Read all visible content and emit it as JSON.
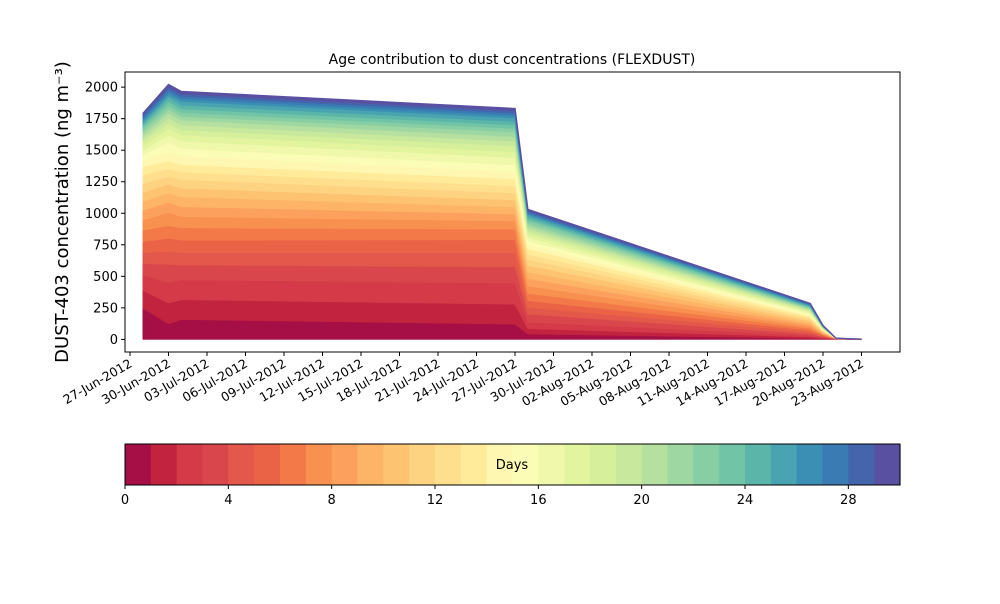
{
  "chart_data": {
    "type": "area",
    "stacked": true,
    "title": "Age contribution to dust concentrations (FLEXDUST)",
    "ylabel": "DUST-403 concentration (ng m⁻³)",
    "xlabel": "",
    "ylim": [
      -100,
      2120
    ],
    "yticks": [
      0,
      250,
      500,
      750,
      1000,
      1250,
      1500,
      1750,
      2000
    ],
    "xticks": [
      "27-Jun-2012",
      "30-Jun-2012",
      "03-Jul-2012",
      "06-Jul-2012",
      "09-Jul-2012",
      "12-Jul-2012",
      "15-Jul-2012",
      "18-Jul-2012",
      "21-Jul-2012",
      "24-Jul-2012",
      "27-Jul-2012",
      "30-Jul-2012",
      "02-Aug-2012",
      "05-Aug-2012",
      "08-Aug-2012",
      "11-Aug-2012",
      "14-Aug-2012",
      "17-Aug-2012",
      "20-Aug-2012",
      "23-Aug-2012"
    ],
    "x": [
      "2012-06-28",
      "2012-06-30",
      "2012-07-01",
      "2012-07-27",
      "2012-07-28",
      "2012-08-19",
      "2012-08-20",
      "2012-08-21",
      "2012-08-22",
      "2012-08-23"
    ],
    "total": [
      1790,
      2020,
      1965,
      1830,
      1030,
      285,
      110,
      10,
      5,
      2
    ],
    "layer_profiles": [
      [
        0.14,
        0.06,
        0.08,
        0.065,
        0.04,
        0.03,
        0.04,
        0.12,
        0.05,
        0.05
      ],
      [
        0.08,
        0.08,
        0.08,
        0.085,
        0.04,
        0.035,
        0.045,
        0.12,
        0.05,
        0.05
      ],
      [
        0.07,
        0.08,
        0.08,
        0.09,
        0.05,
        0.04,
        0.05,
        0.12,
        0.06,
        0.06
      ],
      [
        0.05,
        0.07,
        0.06,
        0.07,
        0.06,
        0.045,
        0.05,
        0.1,
        0.06,
        0.06
      ],
      [
        0.05,
        0.05,
        0.05,
        0.06,
        0.05,
        0.05,
        0.05,
        0.05,
        0.06,
        0.06
      ],
      [
        0.05,
        0.05,
        0.05,
        0.055,
        0.05,
        0.05,
        0.05,
        0.05,
        0.06,
        0.06
      ],
      [
        0.05,
        0.05,
        0.05,
        0.045,
        0.055,
        0.05,
        0.05,
        0.05,
        0.06,
        0.06
      ],
      [
        0.045,
        0.05,
        0.045,
        0.035,
        0.055,
        0.05,
        0.05,
        0.05,
        0.06,
        0.06
      ],
      [
        0.045,
        0.04,
        0.04,
        0.03,
        0.055,
        0.05,
        0.05,
        0.05,
        0.06,
        0.06
      ],
      [
        0.04,
        0.035,
        0.04,
        0.03,
        0.05,
        0.05,
        0.05,
        0.05,
        0.05,
        0.05
      ],
      [
        0.04,
        0.035,
        0.035,
        0.03,
        0.05,
        0.05,
        0.05,
        0.05,
        0.05,
        0.05
      ],
      [
        0.04,
        0.03,
        0.035,
        0.03,
        0.045,
        0.045,
        0.045,
        0.04,
        0.04,
        0.04
      ],
      [
        0.04,
        0.03,
        0.03,
        0.03,
        0.04,
        0.04,
        0.04,
        0.03,
        0.04,
        0.04
      ],
      [
        0.035,
        0.03,
        0.03,
        0.03,
        0.04,
        0.04,
        0.04,
        0.03,
        0.04,
        0.04
      ],
      [
        0.03,
        0.035,
        0.035,
        0.03,
        0.03,
        0.035,
        0.035,
        0.02,
        0.04,
        0.04
      ],
      [
        0.025,
        0.035,
        0.03,
        0.03,
        0.03,
        0.035,
        0.035,
        0.02,
        0.03,
        0.03
      ],
      [
        0.02,
        0.03,
        0.03,
        0.03,
        0.025,
        0.03,
        0.03,
        0.02,
        0.03,
        0.03
      ],
      [
        0.02,
        0.025,
        0.025,
        0.025,
        0.025,
        0.03,
        0.03,
        0.02,
        0.03,
        0.03
      ],
      [
        0.02,
        0.02,
        0.02,
        0.025,
        0.02,
        0.025,
        0.025,
        0.02,
        0.02,
        0.02
      ],
      [
        0.015,
        0.02,
        0.02,
        0.02,
        0.02,
        0.025,
        0.025,
        0.02,
        0.02,
        0.02
      ],
      [
        0.015,
        0.02,
        0.02,
        0.02,
        0.02,
        0.02,
        0.02,
        0.01,
        0.02,
        0.02
      ],
      [
        0.015,
        0.015,
        0.015,
        0.02,
        0.02,
        0.02,
        0.02,
        0.01,
        0.02,
        0.02
      ],
      [
        0.015,
        0.015,
        0.015,
        0.015,
        0.02,
        0.02,
        0.02,
        0.01,
        0.01,
        0.01
      ],
      [
        0.01,
        0.015,
        0.015,
        0.015,
        0.015,
        0.02,
        0.02,
        0.01,
        0.01,
        0.01
      ],
      [
        0.01,
        0.015,
        0.015,
        0.015,
        0.015,
        0.02,
        0.015,
        0.01,
        0.01,
        0.01
      ],
      [
        0.01,
        0.01,
        0.015,
        0.015,
        0.015,
        0.02,
        0.015,
        0.01,
        0.01,
        0.01
      ],
      [
        0.01,
        0.01,
        0.01,
        0.01,
        0.01,
        0.015,
        0.015,
        0.01,
        0.01,
        0.01
      ],
      [
        0.01,
        0.01,
        0.01,
        0.01,
        0.01,
        0.015,
        0.015,
        0.01,
        0.01,
        0.01
      ],
      [
        0.01,
        0.01,
        0.01,
        0.01,
        0.01,
        0.015,
        0.015,
        0.01,
        0.01,
        0.01
      ],
      [
        0.005,
        0.01,
        0.01,
        0.01,
        0.01,
        0.01,
        0.01,
        0.01,
        0.01,
        0.01
      ]
    ],
    "colorbar": {
      "label": "Days",
      "range": [
        0,
        30
      ],
      "ticks": [
        0,
        4,
        8,
        12,
        16,
        20,
        24,
        28
      ],
      "colors": [
        "#a50f45",
        "#c2233f",
        "#d43a48",
        "#d9474c",
        "#e3584a",
        "#ea6346",
        "#f37949",
        "#f8904f",
        "#fca05d",
        "#fdb466",
        "#fdc370",
        "#fdd382",
        "#fedf8e",
        "#ffeb9a",
        "#fef7b2",
        "#fbfcb5",
        "#f0f8ab",
        "#e3f49f",
        "#d6ef9b",
        "#c8e99d",
        "#b5e0a0",
        "#9fd7a2",
        "#88cea4",
        "#71c4a6",
        "#5bb6a9",
        "#49a3b0",
        "#3b8fb5",
        "#3a7bb4",
        "#4465ac",
        "#5a50a2"
      ]
    }
  }
}
